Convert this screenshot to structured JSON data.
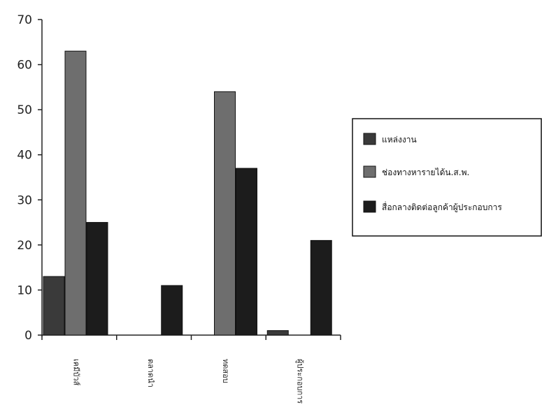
{
  "chart_data": {
    "type": "bar",
    "categories": [
      "เคมีบัวส์",
      "ตลาดนำ",
      "ทดสอบ",
      "ผู้ประกอบการ"
    ],
    "series": [
      {
        "name": "แหล่งงาน",
        "values": [
          13,
          0,
          0,
          1
        ],
        "color": "#3a3a3a"
      },
      {
        "name": "ช่องทางหารายได้น.ส.พ.",
        "values": [
          63,
          0,
          54,
          0
        ],
        "color": "#6e6e6e"
      },
      {
        "name": "สื่อกลางติดต่อลูกค้าผู้ประกอบการ",
        "values": [
          25,
          11,
          37,
          21
        ],
        "color": "#1c1c1c"
      }
    ],
    "yticks": [
      0,
      10,
      20,
      30,
      40,
      50,
      60,
      70
    ],
    "ylim": [
      0,
      70
    ],
    "grid": false,
    "legend_position": "right"
  }
}
